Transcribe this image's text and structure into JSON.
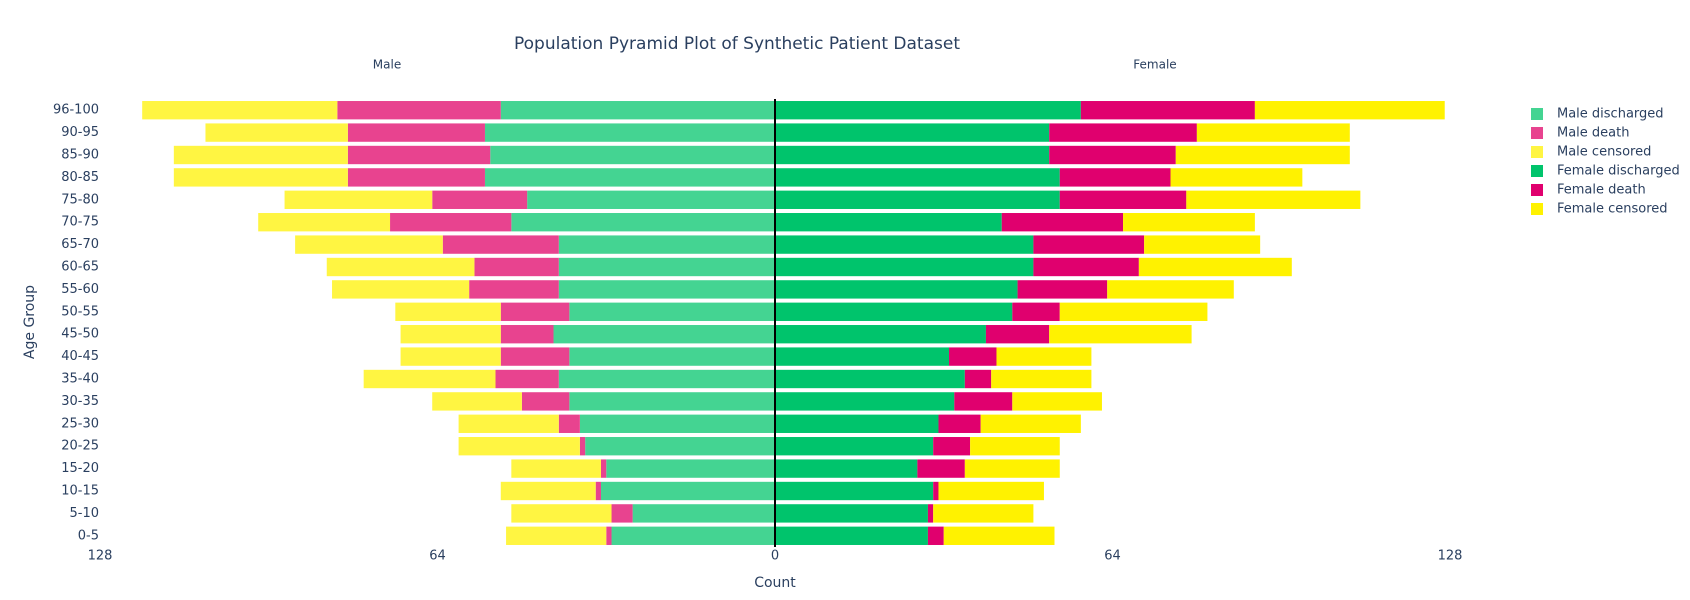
{
  "chart_data": {
    "type": "bar",
    "orientation": "horizontal",
    "barmode": "stack",
    "title": "Population Pyramid Plot of Synthetic Patient Dataset",
    "annotations": [
      "Male",
      "Female"
    ],
    "xlabel": "Count",
    "ylabel": "Age Group",
    "categories": [
      "0-5",
      "5-10",
      "10-15",
      "15-20",
      "20-25",
      "25-30",
      "30-35",
      "35-40",
      "40-45",
      "45-50",
      "50-55",
      "55-60",
      "60-65",
      "65-70",
      "70-75",
      "75-80",
      "80-85",
      "85-90",
      "90-95",
      "96-100"
    ],
    "series": [
      {
        "name": "Male discharged",
        "color": "#44d492",
        "values": [
          -31,
          -27,
          -33,
          -32,
          -36,
          -37,
          -39,
          -41,
          -39,
          -42,
          -39,
          -41,
          -41,
          -41,
          -50,
          -47,
          -55,
          -54,
          -55,
          -52
        ]
      },
      {
        "name": "Male death",
        "color": "#e8438f",
        "values": [
          -1,
          -4,
          -1,
          -1,
          -1,
          -4,
          -9,
          -12,
          -13,
          -10,
          -13,
          -17,
          -16,
          -22,
          -23,
          -18,
          -26,
          -27,
          -26,
          -31
        ]
      },
      {
        "name": "Male censored",
        "color": "#fff542",
        "values": [
          -19,
          -19,
          -18,
          -17,
          -23,
          -19,
          -17,
          -25,
          -19,
          -19,
          -20,
          -26,
          -28,
          -28,
          -25,
          -28,
          -33,
          -33,
          -27,
          -37
        ]
      },
      {
        "name": "Female discharged",
        "color": "#00c46c",
        "values": [
          29,
          29,
          30,
          27,
          30,
          31,
          34,
          36,
          33,
          40,
          45,
          46,
          49,
          49,
          43,
          54,
          54,
          52,
          52,
          58
        ]
      },
      {
        "name": "Female death",
        "color": "#e0006e",
        "values": [
          3,
          1,
          1,
          9,
          7,
          8,
          11,
          5,
          9,
          12,
          9,
          17,
          20,
          21,
          23,
          24,
          21,
          24,
          28,
          33
        ]
      },
      {
        "name": "Female censored",
        "color": "#fff200",
        "values": [
          21,
          19,
          20,
          18,
          17,
          19,
          17,
          19,
          18,
          27,
          28,
          24,
          29,
          22,
          25,
          33,
          25,
          33,
          29,
          36
        ]
      }
    ],
    "xlim": [
      -128,
      128
    ],
    "xticks": [
      {
        "value": -128,
        "label": "128"
      },
      {
        "value": -64,
        "label": "64"
      },
      0,
      64,
      128
    ],
    "legend": "right"
  }
}
